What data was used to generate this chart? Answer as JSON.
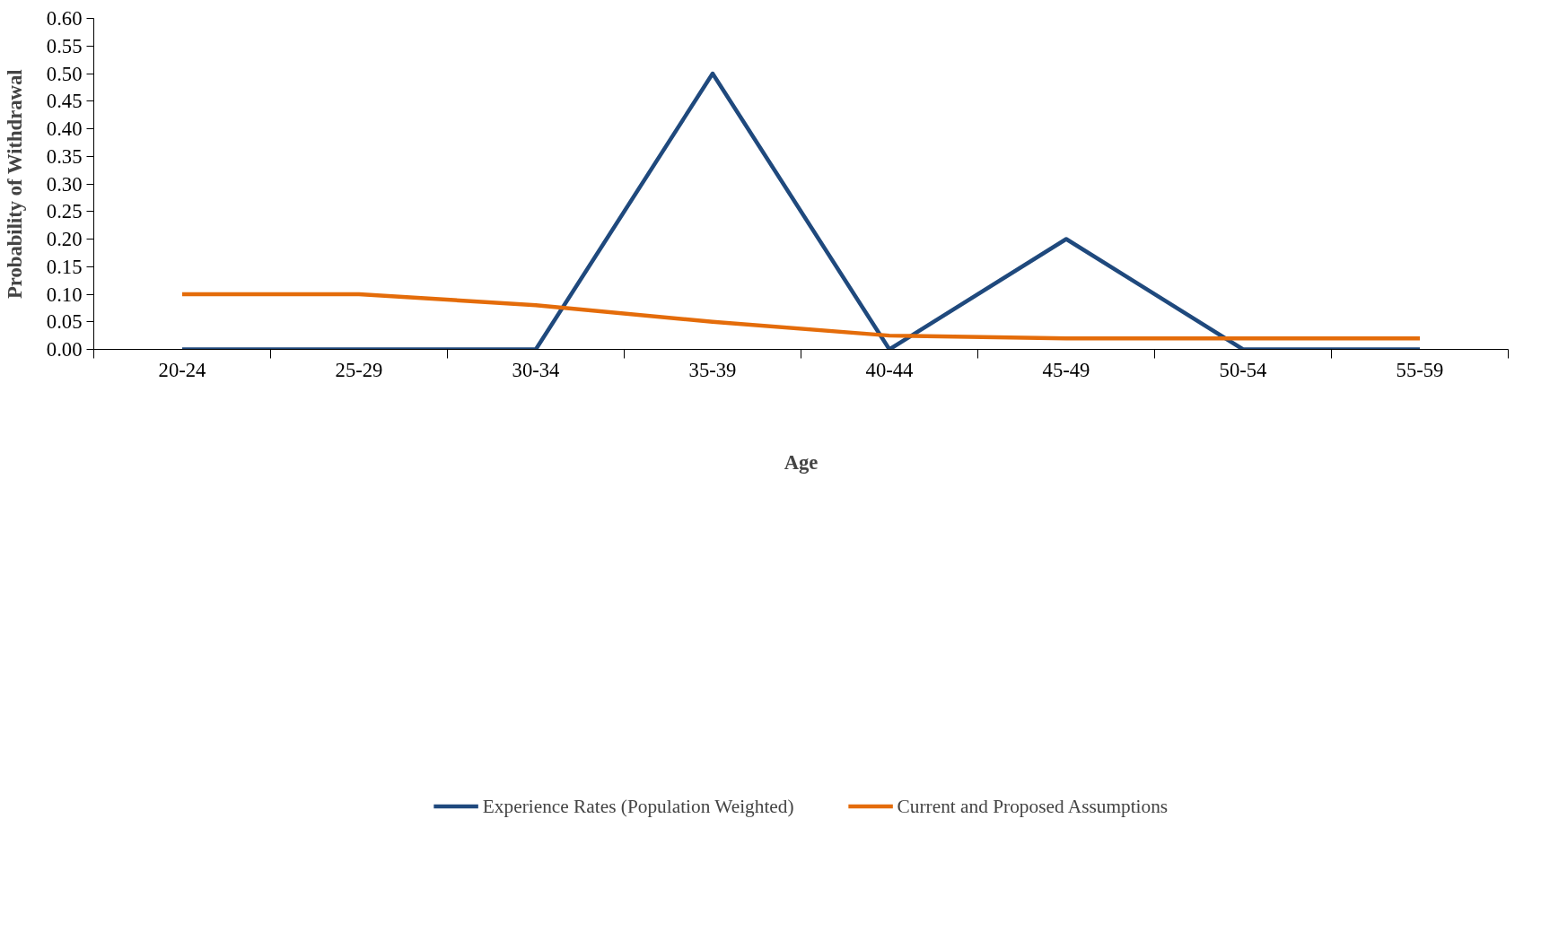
{
  "chart_data": {
    "type": "line",
    "xlabel": "Age",
    "ylabel": "Probability of Withdrawal",
    "categories": [
      "20-24",
      "25-29",
      "30-34",
      "35-39",
      "40-44",
      "45-49",
      "50-54",
      "55-59"
    ],
    "series": [
      {
        "name": "Experience Rates (Population Weighted)",
        "color": "#1f497d",
        "values": [
          0,
          0,
          0,
          0.5,
          0,
          0.2,
          0,
          0
        ]
      },
      {
        "name": "Current and Proposed Assumptions",
        "color": "#e46c0a",
        "values": [
          0.1,
          0.1,
          0.08,
          0.05,
          0.025,
          0.02,
          0.02,
          0.02
        ]
      }
    ],
    "ylim": [
      0,
      0.6
    ],
    "yticks": [
      {
        "value": 0,
        "label": "0.00"
      },
      {
        "value": 0.05,
        "label": "0.05"
      },
      {
        "value": 0.1,
        "label": "0.10"
      },
      {
        "value": 0.15,
        "label": "0.15"
      },
      {
        "value": 0.2,
        "label": "0.20"
      },
      {
        "value": 0.25,
        "label": "0.25"
      },
      {
        "value": 0.3,
        "label": "0.30"
      },
      {
        "value": 0.35,
        "label": "0.35"
      },
      {
        "value": 0.4,
        "label": "0.40"
      },
      {
        "value": 0.45,
        "label": "0.45"
      },
      {
        "value": 0.5,
        "label": "0.50"
      },
      {
        "value": 0.55,
        "label": "0.55"
      },
      {
        "value": 0.6,
        "label": "0.60"
      }
    ],
    "grid": false,
    "legend": "bottom",
    "line_style": "solid",
    "marker": "none"
  }
}
